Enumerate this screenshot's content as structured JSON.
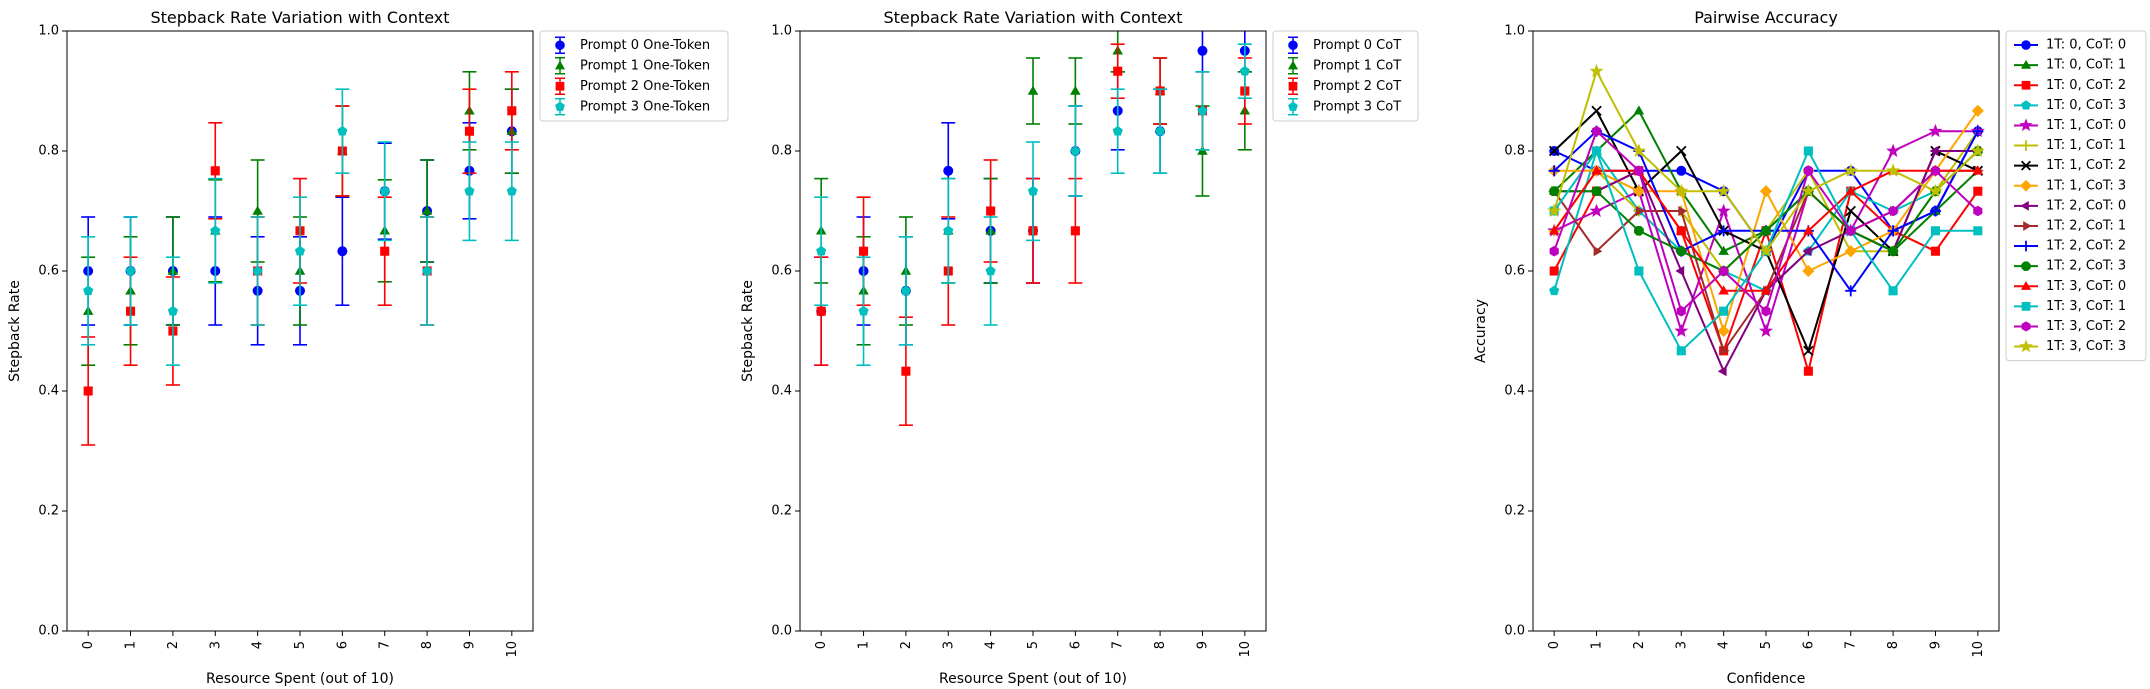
{
  "chart_data": [
    {
      "type": "scatter",
      "title": "Stepback Rate Variation with Context",
      "xlabel": "Resource Spent (out of 10)",
      "ylabel": "Stepback Rate",
      "x": [
        0,
        1,
        2,
        3,
        4,
        5,
        6,
        7,
        8,
        9,
        10
      ],
      "xlim": [
        -0.5,
        10.5
      ],
      "ylim": [
        0,
        1
      ],
      "yticks": [
        0.0,
        0.2,
        0.4,
        0.6,
        0.8,
        1.0
      ],
      "legend_position": "upper right outside",
      "error_bars": true,
      "series": [
        {
          "name": "Prompt 0 One-Token",
          "color": "#0000ff",
          "marker": "circle",
          "values": [
            0.6,
            0.6,
            0.6,
            0.6,
            0.567,
            0.567,
            0.633,
            0.733,
            0.7,
            0.767,
            0.833
          ],
          "err": [
            0.09,
            0.09,
            0.09,
            0.09,
            0.09,
            0.09,
            0.09,
            0.08,
            0.085,
            0.08,
            0.07
          ]
        },
        {
          "name": "Prompt 1 One-Token",
          "color": "#008000",
          "marker": "triangle",
          "values": [
            0.533,
            0.567,
            0.6,
            0.667,
            0.7,
            0.6,
            0.8,
            0.667,
            0.7,
            0.867,
            0.833
          ],
          "err": [
            0.09,
            0.09,
            0.09,
            0.085,
            0.085,
            0.09,
            0.075,
            0.085,
            0.085,
            0.065,
            0.07
          ]
        },
        {
          "name": "Prompt 2 One-Token",
          "color": "#ff0000",
          "marker": "square",
          "values": [
            0.4,
            0.533,
            0.5,
            0.767,
            0.6,
            0.667,
            0.8,
            0.633,
            0.6,
            0.833,
            0.867
          ],
          "err": [
            0.09,
            0.09,
            0.09,
            0.08,
            0.09,
            0.087,
            0.075,
            0.09,
            0.09,
            0.07,
            0.065
          ]
        },
        {
          "name": "Prompt 3 One-Token",
          "color": "#00bfbf",
          "marker": "pentagon",
          "values": [
            0.567,
            0.6,
            0.533,
            0.667,
            0.6,
            0.633,
            0.833,
            0.733,
            0.6,
            0.733,
            0.733
          ],
          "err": [
            0.09,
            0.09,
            0.09,
            0.087,
            0.09,
            0.09,
            0.07,
            0.082,
            0.09,
            0.082,
            0.082
          ]
        }
      ]
    },
    {
      "type": "scatter",
      "title": "Stepback Rate Variation with Context",
      "xlabel": "Resource Spent (out of 10)",
      "ylabel": "Stepback Rate",
      "x": [
        0,
        1,
        2,
        3,
        4,
        5,
        6,
        7,
        8,
        9,
        10
      ],
      "xlim": [
        -0.5,
        10.5
      ],
      "ylim": [
        0,
        1
      ],
      "yticks": [
        0.0,
        0.2,
        0.4,
        0.6,
        0.8,
        1.0
      ],
      "legend_position": "upper right outside",
      "error_bars": true,
      "series": [
        {
          "name": "Prompt 0 CoT",
          "color": "#0000ff",
          "marker": "circle",
          "values": [
            0.533,
            0.6,
            0.567,
            0.767,
            0.667,
            0.667,
            0.8,
            0.867,
            0.833,
            0.967,
            0.967
          ],
          "err": [
            0.09,
            0.09,
            0.09,
            0.08,
            0.087,
            0.087,
            0.075,
            0.065,
            0.07,
            0.035,
            0.035
          ]
        },
        {
          "name": "Prompt 1 CoT",
          "color": "#008000",
          "marker": "triangle",
          "values": [
            0.667,
            0.567,
            0.6,
            0.667,
            0.667,
            0.9,
            0.9,
            0.967,
            0.9,
            0.8,
            0.867
          ],
          "err": [
            0.087,
            0.09,
            0.09,
            0.087,
            0.087,
            0.055,
            0.055,
            0.035,
            0.055,
            0.075,
            0.065
          ]
        },
        {
          "name": "Prompt 2 CoT",
          "color": "#ff0000",
          "marker": "square",
          "values": [
            0.533,
            0.633,
            0.433,
            0.6,
            0.7,
            0.667,
            0.667,
            0.933,
            0.9,
            0.867,
            0.9
          ],
          "err": [
            0.09,
            0.09,
            0.09,
            0.09,
            0.085,
            0.087,
            0.087,
            0.045,
            0.055,
            0.065,
            0.055
          ]
        },
        {
          "name": "Prompt 3 CoT",
          "color": "#00bfbf",
          "marker": "pentagon",
          "values": [
            0.633,
            0.533,
            0.567,
            0.667,
            0.6,
            0.733,
            0.8,
            0.833,
            0.833,
            0.867,
            0.933
          ],
          "err": [
            0.09,
            0.09,
            0.09,
            0.087,
            0.09,
            0.082,
            0.075,
            0.07,
            0.07,
            0.065,
            0.045
          ]
        }
      ]
    },
    {
      "type": "line",
      "title": "Pairwise Accuracy",
      "xlabel": "Confidence",
      "ylabel": "Accuracy",
      "x": [
        0,
        1,
        2,
        3,
        4,
        5,
        6,
        7,
        8,
        9,
        10
      ],
      "xlim": [
        -0.5,
        10.5
      ],
      "ylim": [
        0,
        1
      ],
      "yticks": [
        0.0,
        0.2,
        0.4,
        0.6,
        0.8,
        1.0
      ],
      "legend_position": "upper right outside",
      "series": [
        {
          "name": "1T: 0, CoT: 0",
          "color": "#0000ff",
          "marker": "circle",
          "values": [
            0.8,
            0.767,
            0.767,
            0.767,
            0.733,
            0.633,
            0.767,
            0.767,
            0.667,
            0.7,
            0.833
          ]
        },
        {
          "name": "1T: 0, CoT: 1",
          "color": "#008000",
          "marker": "triangle",
          "values": [
            0.733,
            0.8,
            0.867,
            0.733,
            0.633,
            0.667,
            0.733,
            0.667,
            0.633,
            0.7,
            0.767
          ]
        },
        {
          "name": "1T: 0, CoT: 2",
          "color": "#ff0000",
          "marker": "square",
          "values": [
            0.6,
            0.733,
            0.767,
            0.667,
            0.467,
            0.667,
            0.433,
            0.733,
            0.667,
            0.633,
            0.733
          ]
        },
        {
          "name": "1T: 0, CoT: 3",
          "color": "#00bfbf",
          "marker": "pentagon",
          "values": [
            0.567,
            0.8,
            0.7,
            0.633,
            0.6,
            0.567,
            0.633,
            0.733,
            0.7,
            0.733,
            0.8
          ]
        },
        {
          "name": "1T: 1, CoT: 0",
          "color": "#bf00bf",
          "marker": "star",
          "values": [
            0.667,
            0.7,
            0.733,
            0.5,
            0.7,
            0.5,
            0.733,
            0.667,
            0.8,
            0.833,
            0.833
          ]
        },
        {
          "name": "1T: 1, CoT: 1",
          "color": "#bfbf00",
          "marker": "plus",
          "values": [
            0.667,
            0.767,
            0.7,
            0.7,
            0.6,
            0.667,
            0.767,
            0.633,
            0.633,
            0.733,
            0.833
          ]
        },
        {
          "name": "1T: 1, CoT: 2",
          "color": "#000000",
          "marker": "x",
          "values": [
            0.8,
            0.867,
            0.733,
            0.8,
            0.667,
            0.633,
            0.467,
            0.7,
            0.633,
            0.8,
            0.767
          ]
        },
        {
          "name": "1T: 1, CoT: 3",
          "color": "#ffa500",
          "marker": "diamond",
          "values": [
            0.767,
            0.767,
            0.733,
            0.733,
            0.5,
            0.733,
            0.6,
            0.633,
            0.667,
            0.767,
            0.867
          ]
        },
        {
          "name": "1T: 2, CoT: 0",
          "color": "#800080",
          "marker": "triangle-left",
          "values": [
            0.733,
            0.733,
            0.767,
            0.6,
            0.433,
            0.567,
            0.633,
            0.667,
            0.633,
            0.8,
            0.8
          ]
        },
        {
          "name": "1T: 2, CoT: 1",
          "color": "#a52a2a",
          "marker": "triangle-right",
          "values": [
            0.733,
            0.633,
            0.7,
            0.7,
            0.467,
            0.567,
            0.733,
            0.667,
            0.7,
            0.767,
            0.767
          ]
        },
        {
          "name": "1T: 2, CoT: 2",
          "color": "#0000ff",
          "marker": "plus",
          "values": [
            0.767,
            0.833,
            0.8,
            0.633,
            0.667,
            0.667,
            0.667,
            0.567,
            0.667,
            0.7,
            0.833
          ]
        },
        {
          "name": "1T: 2, CoT: 3",
          "color": "#008000",
          "marker": "octagon",
          "values": [
            0.733,
            0.733,
            0.667,
            0.633,
            0.6,
            0.667,
            0.733,
            0.667,
            0.633,
            0.733,
            0.8
          ]
        },
        {
          "name": "1T: 3, CoT: 0",
          "color": "#ff0000",
          "marker": "triangle",
          "values": [
            0.667,
            0.767,
            0.767,
            0.667,
            0.567,
            0.567,
            0.667,
            0.733,
            0.767,
            0.767,
            0.767
          ]
        },
        {
          "name": "1T: 3, CoT: 1",
          "color": "#00bfbf",
          "marker": "square",
          "values": [
            0.7,
            0.8,
            0.6,
            0.467,
            0.533,
            0.633,
            0.8,
            0.667,
            0.567,
            0.667,
            0.667
          ]
        },
        {
          "name": "1T: 3, CoT: 2",
          "color": "#bf00bf",
          "marker": "hexagon",
          "values": [
            0.633,
            0.833,
            0.767,
            0.533,
            0.6,
            0.533,
            0.767,
            0.667,
            0.7,
            0.767,
            0.7
          ]
        },
        {
          "name": "1T: 3, CoT: 3",
          "color": "#bfbf00",
          "marker": "star",
          "values": [
            0.7,
            0.933,
            0.8,
            0.733,
            0.733,
            0.633,
            0.733,
            0.767,
            0.767,
            0.733,
            0.8
          ]
        }
      ]
    }
  ]
}
